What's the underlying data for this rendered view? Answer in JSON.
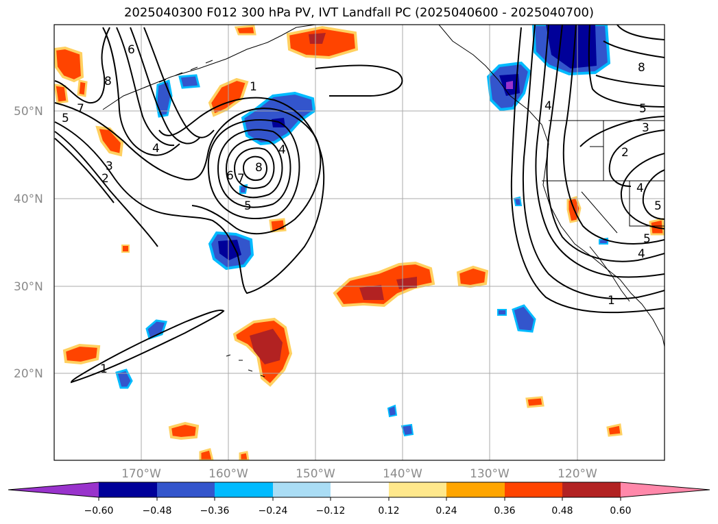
{
  "title": "2025040300 F012 300 hPa PV, IVT Landfall PC (2025040600 - 2025040700)",
  "map": {
    "lat_ticks": [
      "50°N",
      "40°N",
      "30°N",
      "20°N"
    ],
    "lon_ticks": [
      "170°W",
      "160°W",
      "150°W",
      "140°W",
      "130°W",
      "120°W"
    ]
  },
  "colorbar": {
    "tick_labels": [
      "−0.60",
      "−0.48",
      "−0.36",
      "−0.24",
      "−0.12",
      "0.12",
      "0.24",
      "0.36",
      "0.48",
      "0.60"
    ],
    "colors": [
      "#9933cc",
      "#000099",
      "#3355cc",
      "#00bbff",
      "#aaddf5",
      "#ffffff",
      "#ffe88c",
      "#ffa500",
      "#ff4400",
      "#b22222",
      "#ff88aa",
      "#ff88aa"
    ]
  },
  "contour_labels": [
    "5",
    "8",
    "7",
    "6",
    "4",
    "3",
    "2",
    "1",
    "8",
    "5",
    "7",
    "6",
    "4",
    "1",
    "4",
    "5",
    "3",
    "2",
    "4",
    "5",
    "1",
    "5",
    "8",
    "4"
  ]
}
